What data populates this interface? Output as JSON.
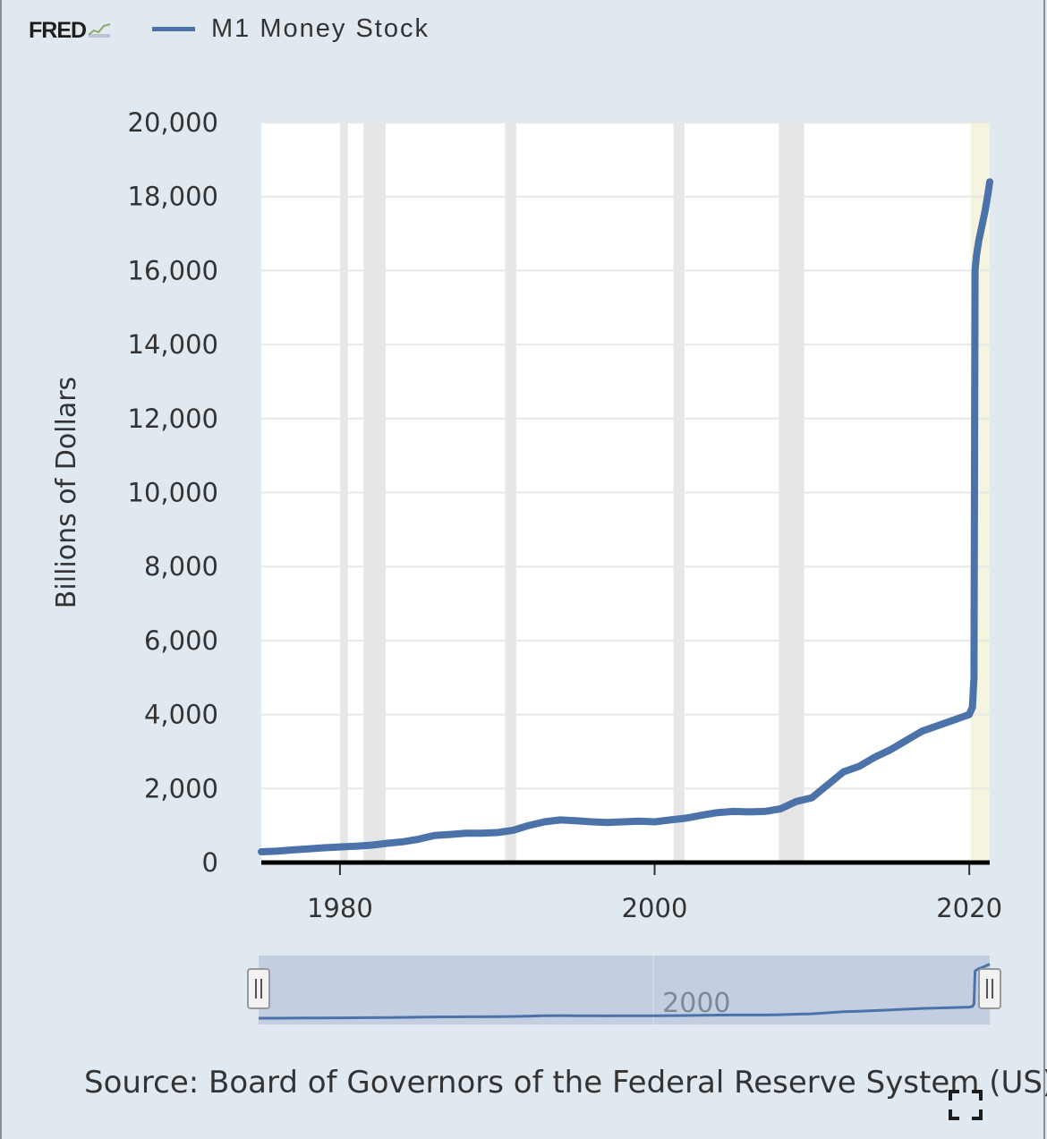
{
  "header": {
    "logo_text": "FRED",
    "logo_icon": "chart-line-icon",
    "legend_label": "M1 Money Stock"
  },
  "colors": {
    "series": "#4c72aa",
    "recession": "#e6e6e6",
    "highlight": "#f5f4de",
    "navigator_fill": "#c3cfe0"
  },
  "chart_data": {
    "type": "area",
    "title": "M1 Money Stock",
    "xlabel": "",
    "ylabel": "Billions of Dollars",
    "xlim": [
      1975,
      2021.3
    ],
    "ylim": [
      0,
      20000
    ],
    "yticks": [
      0,
      2000,
      4000,
      6000,
      8000,
      10000,
      12000,
      14000,
      16000,
      18000,
      20000
    ],
    "ytick_labels": [
      "0",
      "2,000",
      "4,000",
      "6,000",
      "8,000",
      "10,000",
      "12,000",
      "14,000",
      "16,000",
      "18,000",
      "20,000"
    ],
    "xticks": [
      1980,
      2000,
      2020
    ],
    "xtick_labels": [
      "1980",
      "2000",
      "2020"
    ],
    "recessions": [
      [
        1980.0,
        1980.5
      ],
      [
        1981.5,
        1982.9
      ],
      [
        1990.5,
        1991.2
      ],
      [
        2001.2,
        2001.9
      ],
      [
        2007.9,
        2009.5
      ]
    ],
    "highlight_period": [
      2020.1,
      2021.3
    ],
    "series": [
      {
        "name": "M1 Money Stock",
        "x": [
          1975,
          1976,
          1977,
          1978,
          1979,
          1980,
          1981,
          1982,
          1983,
          1984,
          1985,
          1986,
          1987,
          1988,
          1989,
          1990,
          1991,
          1992,
          1993,
          1994,
          1995,
          1996,
          1997,
          1998,
          1999,
          2000,
          2001,
          2002,
          2003,
          2004,
          2005,
          2006,
          2007,
          2008,
          2009,
          2010,
          2011,
          2012,
          2013,
          2014,
          2015,
          2016,
          2017,
          2018,
          2019,
          2020.0,
          2020.2,
          2020.3,
          2020.37,
          2020.45,
          2020.6,
          2020.8,
          2021.0,
          2021.2,
          2021.3
        ],
        "values": [
          290,
          310,
          340,
          370,
          400,
          420,
          440,
          470,
          520,
          560,
          630,
          730,
          760,
          790,
          790,
          810,
          870,
          1000,
          1100,
          1150,
          1130,
          1100,
          1080,
          1100,
          1120,
          1100,
          1150,
          1200,
          1280,
          1350,
          1380,
          1370,
          1380,
          1450,
          1650,
          1750,
          2100,
          2450,
          2600,
          2850,
          3050,
          3300,
          3550,
          3700,
          3850,
          4000,
          4200,
          5000,
          16000,
          16400,
          16800,
          17200,
          17600,
          18100,
          18400
        ]
      }
    ],
    "navigator": {
      "xtick_labels": [
        "2000"
      ]
    }
  },
  "source": {
    "text": "Source: Board of Governors of the Federal Reserve System (US)"
  },
  "controls": {
    "expand_icon": "expand-icon",
    "left_handle_icon": "navigator-handle-icon",
    "right_handle_icon": "navigator-handle-icon"
  }
}
